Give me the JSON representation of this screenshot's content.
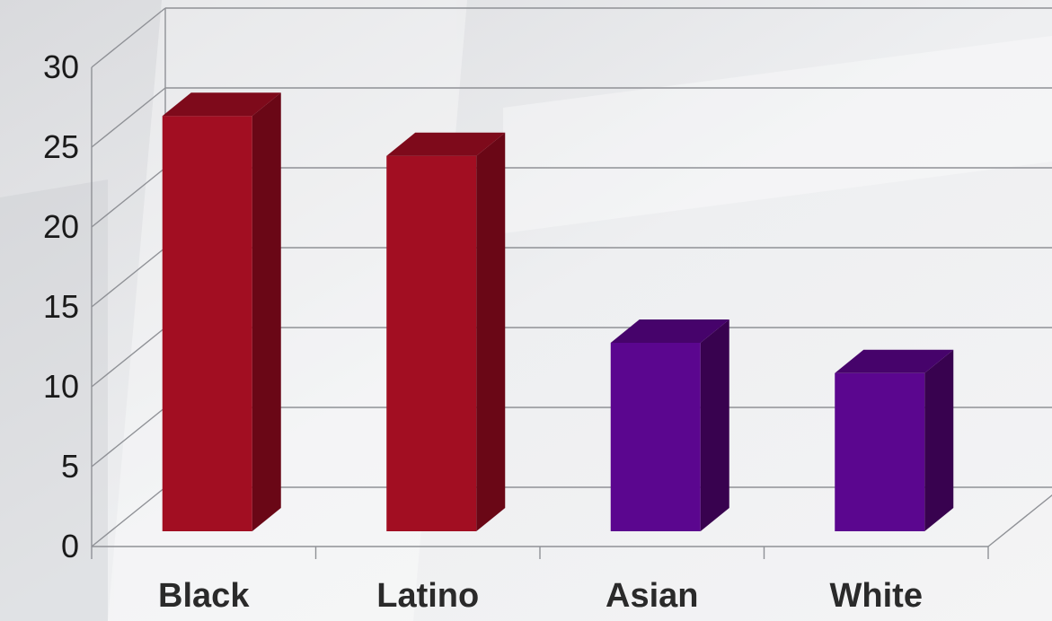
{
  "chart_data": {
    "type": "bar",
    "title": "",
    "xlabel": "",
    "ylabel": "",
    "categories": [
      "Black",
      "Latino",
      "Asian",
      "White"
    ],
    "values": [
      26,
      23.5,
      11.8,
      9.9
    ],
    "bar_colors": [
      "#a20e22",
      "#a20e22",
      "#5b068f",
      "#5b068f"
    ],
    "bar_side_colors": [
      "#6a0716",
      "#6a0716",
      "#38024f",
      "#38024f"
    ],
    "bar_top_colors": [
      "#7e0a1b",
      "#7e0a1b",
      "#46036b",
      "#46036b"
    ],
    "ylim": [
      0,
      30
    ],
    "yticks": [
      "0",
      "5",
      "10",
      "15",
      "20",
      "25",
      "30"
    ],
    "grid": true,
    "style": "3d-column"
  }
}
